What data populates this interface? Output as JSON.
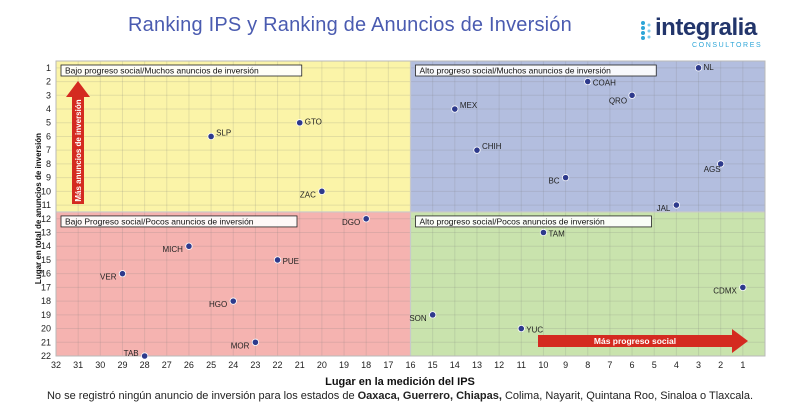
{
  "header": {
    "title": "Ranking IPS y Ranking de Anuncios de Inversión",
    "logo_name": "integralia",
    "logo_sub": "CONSULTORES"
  },
  "footnote": {
    "prefix": "No se registró ningún anuncio de inversión para los estados de ",
    "bold": "Oaxaca, Guerrero, Chiapas,",
    "suffix": " Colima, Nayarit, Quintana Roo, Sinaloa o Tlaxcala."
  },
  "colors": {
    "top_left": "#fbf4a8",
    "top_right": "#b3bedf",
    "bottom_left": "#f5b3b0",
    "bottom_right": "#c9e3ad",
    "point": "#2e3a8c",
    "arrow": "#d42a20",
    "title": "#4a5bb0"
  },
  "chart_data": {
    "type": "scatter",
    "xlabel": "Lugar en la medición del IPS",
    "ylabel": "Lugar en total de anuncios de inversión",
    "x_reversed": true,
    "y_reversed": true,
    "xlim": [
      32,
      0
    ],
    "ylim": [
      0.5,
      22
    ],
    "x_ticks": [
      32,
      31,
      30,
      29,
      28,
      27,
      26,
      25,
      24,
      23,
      22,
      21,
      20,
      19,
      18,
      17,
      16,
      15,
      14,
      13,
      12,
      11,
      10,
      9,
      8,
      7,
      6,
      5,
      4,
      3,
      2,
      1
    ],
    "y_ticks": [
      1,
      2,
      3,
      4,
      5,
      6,
      7,
      8,
      9,
      10,
      11,
      12,
      13,
      14,
      15,
      16,
      17,
      18,
      19,
      20,
      21,
      22
    ],
    "x_split": 16,
    "y_split": 11.5,
    "quadrants": [
      {
        "position": "top-left",
        "label": "Bajo progreso social/Muchos anuncios de inversión"
      },
      {
        "position": "top-right",
        "label": "Alto progreso social/Muchos anuncios de inversión"
      },
      {
        "position": "bottom-left",
        "label": "Bajo Progreso social/Pocos anuncios de inversión"
      },
      {
        "position": "bottom-right",
        "label": "Alto progreso social/Pocos anuncios de inversión"
      }
    ],
    "arrows": {
      "vertical": "Más anuncios de inversión",
      "horizontal": "Más progreso social"
    },
    "points": [
      {
        "label": "NL",
        "x": 3,
        "y": 1
      },
      {
        "label": "COAH",
        "x": 8,
        "y": 2
      },
      {
        "label": "QRO",
        "x": 6,
        "y": 3
      },
      {
        "label": "MEX",
        "x": 14,
        "y": 4
      },
      {
        "label": "GTO",
        "x": 21,
        "y": 5
      },
      {
        "label": "SLP",
        "x": 25,
        "y": 6
      },
      {
        "label": "CHIH",
        "x": 13,
        "y": 7
      },
      {
        "label": "AGS",
        "x": 2,
        "y": 8
      },
      {
        "label": "BC",
        "x": 9,
        "y": 9
      },
      {
        "label": "ZAC",
        "x": 20,
        "y": 10
      },
      {
        "label": "JAL",
        "x": 4,
        "y": 11
      },
      {
        "label": "DGO",
        "x": 18,
        "y": 12
      },
      {
        "label": "TAM",
        "x": 10,
        "y": 13
      },
      {
        "label": "MICH",
        "x": 26,
        "y": 14
      },
      {
        "label": "PUE",
        "x": 22,
        "y": 15
      },
      {
        "label": "VER",
        "x": 29,
        "y": 16
      },
      {
        "label": "CDMX",
        "x": 1,
        "y": 17
      },
      {
        "label": "HGO",
        "x": 24,
        "y": 18
      },
      {
        "label": "SON",
        "x": 15,
        "y": 19
      },
      {
        "label": "YUC",
        "x": 11,
        "y": 20
      },
      {
        "label": "MOR",
        "x": 23,
        "y": 21
      },
      {
        "label": "TAB",
        "x": 28,
        "y": 22
      }
    ]
  }
}
